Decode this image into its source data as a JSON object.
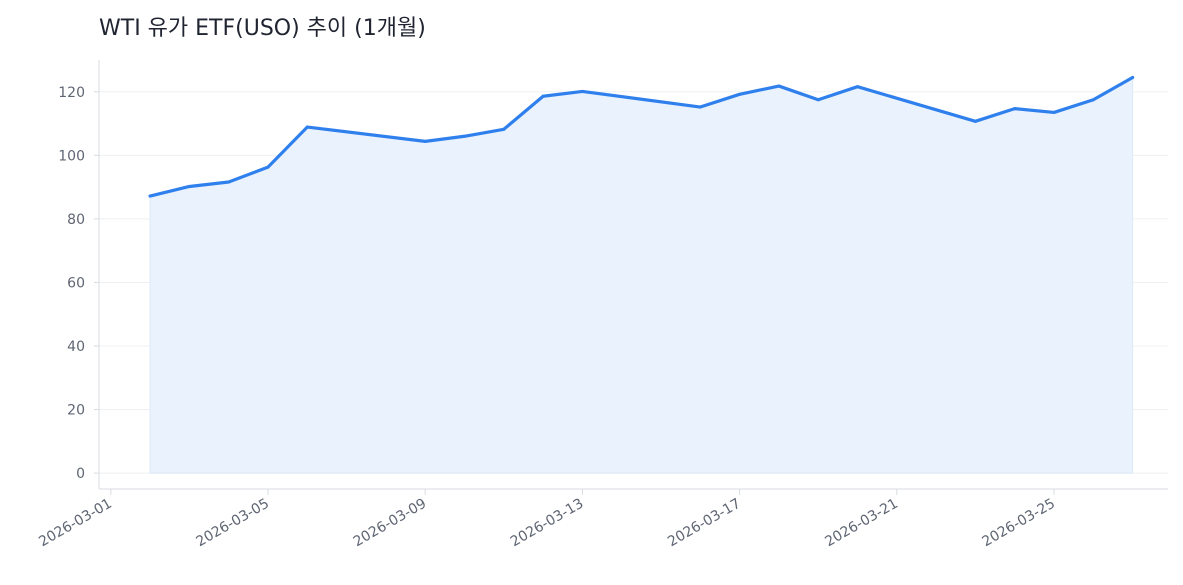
{
  "chart_data": {
    "type": "area",
    "title": "WTI 유가 ETF(USO) 추이 (1개월)",
    "xlabel": "",
    "ylabel": "",
    "x_tick_labels": [
      "2026-03-01",
      "2026-03-05",
      "2026-03-09",
      "2026-03-13",
      "2026-03-17",
      "2026-03-21",
      "2026-03-25"
    ],
    "y_tick_labels": [
      "0",
      "20",
      "40",
      "60",
      "80",
      "100",
      "120"
    ],
    "ylim": [
      -5,
      130
    ],
    "xlim": [
      "2026-02-28",
      "2026-03-28"
    ],
    "grid": "horizontal",
    "legend": "none",
    "colors": {
      "line": "#2f80ed",
      "fill": "#e9f2fd",
      "grid": "#eef0f3",
      "axis": "#d8dbe0",
      "text": "#5f6673",
      "title": "#1f2430"
    },
    "series": [
      {
        "x": [
          "2026-03-02",
          "2026-03-03",
          "2026-03-04",
          "2026-03-05",
          "2026-03-06",
          "2026-03-09",
          "2026-03-10",
          "2026-03-11",
          "2026-03-12",
          "2026-03-13",
          "2026-03-16",
          "2026-03-17",
          "2026-03-18",
          "2026-03-19",
          "2026-03-20",
          "2026-03-23",
          "2026-03-24",
          "2026-03-25",
          "2026-03-26",
          "2026-03-27"
        ],
        "values": [
          87.2,
          90.2,
          91.6,
          96.3,
          108.9,
          104.4,
          106.0,
          108.2,
          118.6,
          120.1,
          115.2,
          119.2,
          121.8,
          117.5,
          121.6,
          110.7,
          114.7,
          113.5,
          117.5,
          124.5
        ]
      }
    ]
  }
}
